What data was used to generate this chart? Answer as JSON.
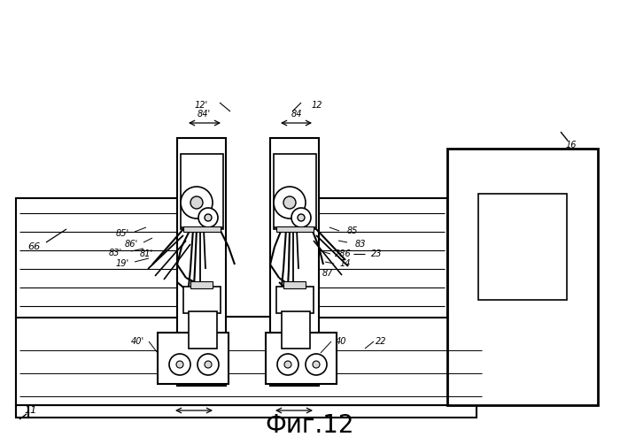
{
  "title": "Фиг.12",
  "title_fontsize": 20,
  "bg": "#ffffff",
  "gray1": "#d8d8d8",
  "gray2": "#b8b8b8"
}
